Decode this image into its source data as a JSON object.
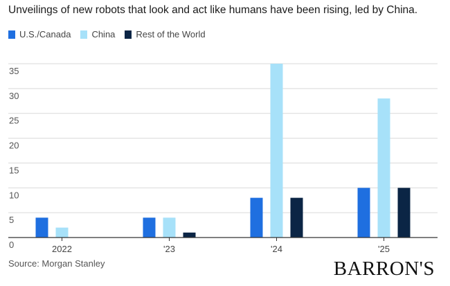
{
  "title": "Unveilings of new robots that look and act like humans have been rising, led by China.",
  "source": "Source: Morgan Stanley",
  "brand": "BARRON'S",
  "chart_data": {
    "type": "bar",
    "categories": [
      "2022",
      "'23",
      "'24",
      "'25"
    ],
    "series": [
      {
        "name": "U.S./Canada",
        "color": "#1f6fe0",
        "values": [
          4,
          4,
          8,
          10
        ]
      },
      {
        "name": "China",
        "color": "#a7e1f9",
        "values": [
          2,
          4,
          35,
          28
        ]
      },
      {
        "name": "Rest of the World",
        "color": "#0b2545",
        "values": [
          0,
          1,
          8,
          10
        ]
      }
    ],
    "yticks": [
      0,
      5,
      10,
      15,
      20,
      25,
      30,
      35
    ],
    "ylim": [
      0,
      35
    ],
    "grid": true,
    "legend": "top-left"
  }
}
